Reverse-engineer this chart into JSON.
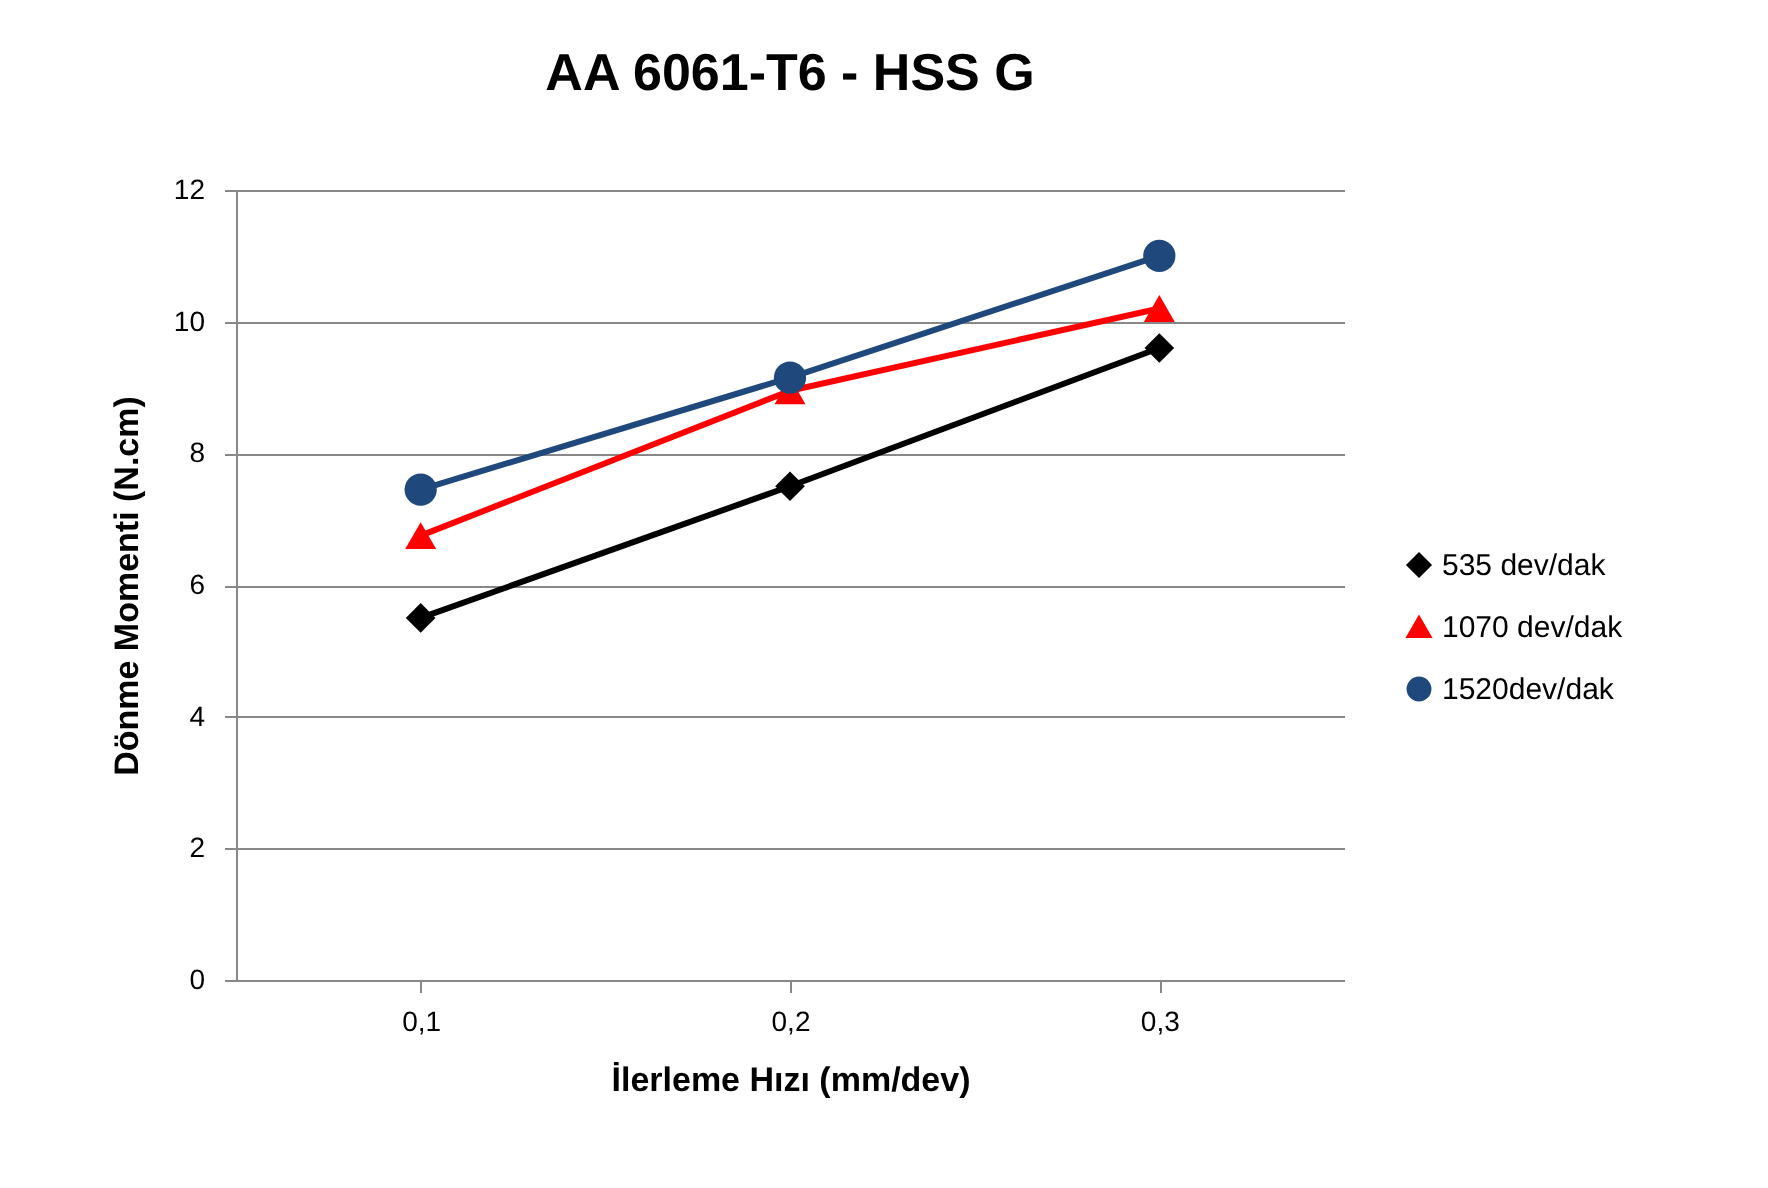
{
  "chart_data": {
    "type": "line",
    "title": "AA 6061-T6 - HSS G",
    "xlabel": "İlerleme Hızı (mm/dev)",
    "ylabel": "Dönme Momenti (N.cm)",
    "categories": [
      "0,1",
      "0,2",
      "0,3"
    ],
    "series": [
      {
        "name": "535 dev/dak",
        "color": "#000000",
        "marker": "diamond",
        "values": [
          5.5,
          7.5,
          9.6
        ]
      },
      {
        "name": "1070 dev/dak",
        "color": "#ff0000",
        "marker": "triangle",
        "values": [
          6.75,
          8.95,
          10.2
        ]
      },
      {
        "name": "1520dev/dak",
        "color": "#1f497d",
        "marker": "circle",
        "values": [
          7.45,
          9.15,
          11.0
        ]
      }
    ],
    "ylim": [
      0,
      12
    ],
    "yticks": [
      0,
      2,
      4,
      6,
      8,
      10,
      12
    ],
    "grid": "y",
    "legend": "right",
    "line_style": "solid"
  }
}
